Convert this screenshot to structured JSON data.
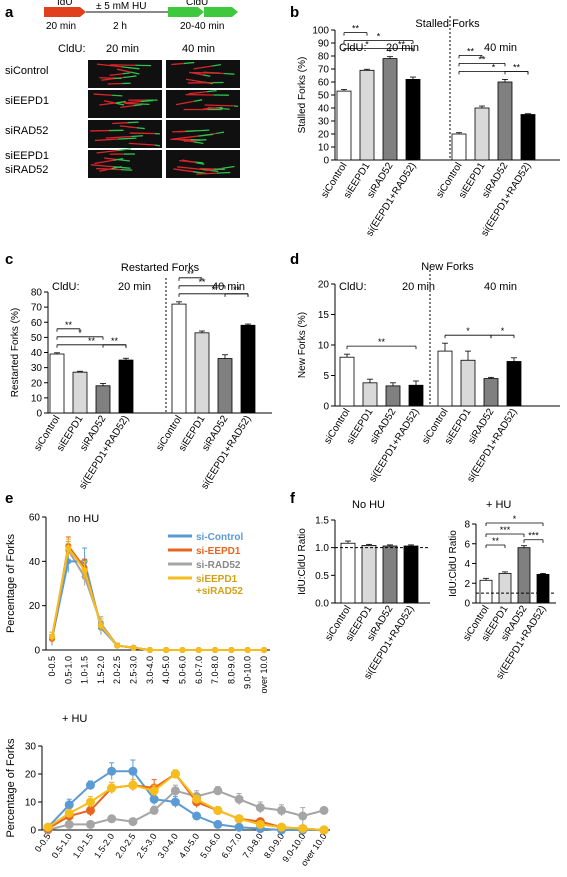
{
  "panel_letters": [
    "a",
    "b",
    "c",
    "d",
    "e",
    "f"
  ],
  "labels": {
    "a": {
      "idu": "IdU",
      "idu_time": "20 min",
      "hu": "± 5 mM HU",
      "hu_time": "2 h",
      "cldu": "CldU",
      "cldu_time": "20-40 min",
      "cldu_hdr": "CldU:",
      "t20": "20 min",
      "t40": "40 min",
      "rows": [
        "siControl",
        "siEEPD1",
        "siRAD52",
        "siEEPD1",
        "siRAD52"
      ]
    },
    "cldu_prefix": "CldU:",
    "t20": "20 min",
    "t40": "40 min"
  },
  "colors": {
    "idu": "#e0401c",
    "cldu": "#3ec83e",
    "micro_bg": "#101010",
    "fiber_red": "#d8262a",
    "fiber_green": "#30c050",
    "bar_fills": [
      "#ffffff",
      "#d9d9d9",
      "#808080",
      "#000000"
    ],
    "si_control": "#5b9bd5",
    "si_eepd1": "#e8641f",
    "si_rad52": "#a5a5a5",
    "si_both": "#f5be1c"
  },
  "chart_data": [
    {
      "id": "b",
      "type": "bar",
      "title": "Stalled Forks",
      "ylabel": "Stalled Forks (%)",
      "ylim": [
        0,
        100
      ],
      "yticks": [
        0,
        10,
        20,
        30,
        40,
        50,
        60,
        70,
        80,
        90,
        100
      ],
      "categories": [
        "siControl",
        "siEEPD1",
        "siRAD52",
        "si(EEPD1+RAD52)"
      ],
      "groups": [
        {
          "label": "20 min",
          "values": [
            53,
            69,
            78,
            62
          ],
          "errors": [
            1.2,
            0.8,
            1.5,
            1.8
          ]
        },
        {
          "label": "40 min",
          "values": [
            20,
            40,
            60,
            35
          ],
          "errors": [
            1.0,
            1.5,
            2.0,
            0.6
          ]
        }
      ],
      "sig": [
        {
          "g": 0,
          "a": 0,
          "b": 2,
          "t": "*"
        },
        {
          "g": 0,
          "a": 0,
          "b": 3,
          "t": "*"
        },
        {
          "g": 0,
          "a": 0,
          "b": 1,
          "t": "**"
        },
        {
          "g": 0,
          "a": 2,
          "b": 3,
          "t": "**"
        },
        {
          "g": 1,
          "a": 0,
          "b": 3,
          "t": "*"
        },
        {
          "g": 1,
          "a": 0,
          "b": 2,
          "t": "**"
        },
        {
          "g": 1,
          "a": 0,
          "b": 1,
          "t": "**"
        },
        {
          "g": 1,
          "a": 2,
          "b": 3,
          "t": "**"
        }
      ]
    },
    {
      "id": "c",
      "type": "bar",
      "title": "Restarted Forks",
      "ylabel": "Restarted Forks (%)",
      "ylim": [
        0,
        80
      ],
      "yticks": [
        0,
        10,
        20,
        30,
        40,
        50,
        60,
        70,
        80
      ],
      "categories": [
        "siControl",
        "siEEPD1",
        "siRAD52",
        "si(EEPD1+RAD52)"
      ],
      "groups": [
        {
          "label": "20 min",
          "values": [
            39,
            27,
            18,
            35
          ],
          "errors": [
            0.8,
            0.6,
            1.5,
            1.2
          ]
        },
        {
          "label": "40 min",
          "values": [
            72,
            53,
            36,
            58
          ],
          "errors": [
            1.5,
            1.2,
            2.5,
            0.8
          ]
        }
      ],
      "sig": [
        {
          "g": 0,
          "a": 0,
          "b": 3,
          "t": "**"
        },
        {
          "g": 0,
          "a": 0,
          "b": 2,
          "t": "*"
        },
        {
          "g": 0,
          "a": 0,
          "b": 1,
          "t": "**"
        },
        {
          "g": 0,
          "a": 2,
          "b": 3,
          "t": "**"
        },
        {
          "g": 1,
          "a": 0,
          "b": 3,
          "t": "*"
        },
        {
          "g": 1,
          "a": 0,
          "b": 2,
          "t": "**"
        },
        {
          "g": 1,
          "a": 0,
          "b": 1,
          "t": "**"
        },
        {
          "g": 1,
          "a": 2,
          "b": 3,
          "t": "**"
        }
      ]
    },
    {
      "id": "d",
      "type": "bar",
      "title": "New Forks",
      "ylabel": "New Forks (%)",
      "ylim": [
        0,
        20
      ],
      "yticks": [
        0,
        5,
        10,
        15,
        20
      ],
      "categories": [
        "siControl",
        "siEEPD1",
        "siRAD52",
        "si(EEPD1+RAD52)"
      ],
      "groups": [
        {
          "label": "20 min",
          "values": [
            8.0,
            3.8,
            3.3,
            3.4
          ],
          "errors": [
            0.5,
            0.6,
            0.5,
            0.7
          ]
        },
        {
          "label": "40 min",
          "values": [
            9.0,
            7.5,
            4.5,
            7.3
          ],
          "errors": [
            1.3,
            1.5,
            0.2,
            0.6
          ]
        }
      ],
      "sig": [
        {
          "g": 0,
          "a": 0,
          "b": 3,
          "t": "**"
        },
        {
          "g": 1,
          "a": 0,
          "b": 2,
          "t": "*"
        },
        {
          "g": 1,
          "a": 2,
          "b": 3,
          "t": "*"
        }
      ]
    },
    {
      "id": "e1",
      "type": "line",
      "annotation": "no HU",
      "ylabel": "Percentage of Forks",
      "ylim": [
        0,
        60
      ],
      "yticks": [
        0,
        20,
        40,
        60
      ],
      "categories": [
        "0-0.5",
        "0.5-1.0",
        "1.0-1.5",
        "1.5-2.0",
        "2.0-2.5",
        "2.5-3.0",
        "3.0-4.0",
        "4.0-5.0",
        "5.0-6.0",
        "6.0-7.0",
        "7.0-8.0",
        "8.0-9.0",
        "9.0-10.0",
        "over 10.0"
      ],
      "series": [
        {
          "name": "si-Control",
          "values": [
            5,
            40,
            40,
            10,
            2,
            1,
            0,
            0,
            0,
            0,
            0,
            0,
            0,
            0
          ],
          "errors": [
            3,
            5,
            6,
            3,
            1,
            0.5,
            0,
            0,
            0,
            0,
            0,
            0,
            0,
            0
          ]
        },
        {
          "name": "si-EEPD1",
          "values": [
            5,
            47,
            37,
            11,
            2,
            1,
            0,
            0,
            0,
            0,
            0,
            0,
            0,
            0
          ],
          "errors": [
            2,
            4,
            4,
            3,
            1,
            0.5,
            0,
            0,
            0,
            0,
            0,
            0,
            0,
            0
          ]
        },
        {
          "name": "si-RAD52",
          "values": [
            6,
            45,
            33,
            12,
            2,
            1,
            0,
            0,
            0,
            0,
            0,
            0,
            0,
            0
          ],
          "errors": [
            2,
            4,
            4,
            3,
            1,
            0.5,
            0,
            0,
            0,
            0,
            0,
            0,
            0,
            0
          ]
        },
        {
          "name": "siEEPD1 +siRAD52",
          "values": [
            6,
            46,
            36,
            11,
            2,
            1,
            0,
            0,
            0,
            0,
            0,
            0,
            0,
            0
          ],
          "errors": [
            2,
            4,
            4,
            3,
            1,
            0.5,
            0,
            0,
            0,
            0,
            0,
            0,
            0,
            0
          ]
        }
      ]
    },
    {
      "id": "e2",
      "type": "line",
      "annotation": "+ HU",
      "ylabel": "Percentage of Forks",
      "ylim": [
        0,
        30
      ],
      "yticks": [
        0,
        10,
        20,
        30
      ],
      "categories": [
        "0-0.5",
        "0.5-1.0",
        "1.0-1.5",
        "1.5-2.0",
        "2.0-2.5",
        "2.5-3.0",
        "3.0-4.0",
        "4.0-5.0",
        "5.0-6.0",
        "6.0-7.0",
        "7.0-8.0",
        "8.0-9.0",
        "9.0-10.0",
        "over 10.0"
      ],
      "series": [
        {
          "name": "si-Control",
          "values": [
            1,
            9,
            16,
            21,
            21,
            11,
            10,
            5,
            2,
            1,
            0.5,
            0,
            0,
            0
          ],
          "errors": [
            0.5,
            2,
            1.5,
            3,
            4,
            2,
            2,
            1,
            0.5,
            0.3,
            0.2,
            0,
            0,
            0
          ]
        },
        {
          "name": "si-EEPD1",
          "values": [
            0.5,
            5,
            7,
            15,
            16,
            15,
            20,
            10,
            7,
            4,
            3,
            1,
            0.5,
            0
          ],
          "errors": [
            0.3,
            1,
            2,
            2,
            2,
            3,
            1,
            2,
            1,
            1,
            1,
            0.5,
            0.3,
            0
          ]
        },
        {
          "name": "si-RAD52",
          "values": [
            0,
            2,
            2,
            4,
            3,
            7,
            14,
            12,
            14,
            11,
            8,
            7,
            5,
            7
          ],
          "errors": [
            0,
            0.5,
            0.5,
            1,
            1,
            1.5,
            2,
            2,
            1.5,
            2,
            2,
            2,
            3,
            1
          ]
        },
        {
          "name": "siEEPD1 +siRAD52",
          "values": [
            1,
            6,
            10,
            15,
            16,
            14,
            20,
            11,
            7,
            4,
            2,
            1,
            0.5,
            0
          ],
          "errors": [
            0.5,
            1,
            2,
            2,
            2,
            2,
            1.5,
            1,
            1,
            1,
            1,
            0.5,
            0.3,
            0
          ]
        }
      ]
    },
    {
      "id": "f1",
      "type": "bar",
      "title": "No HU",
      "ylabel": "IdU:CldU Ratio",
      "ylim": [
        0,
        1.5
      ],
      "yticks": [
        0,
        0.5,
        1.0,
        1.5
      ],
      "reference_line": 1.0,
      "categories": [
        "siControl",
        "siEEPD1",
        "siRAD52",
        "si(EEPD1+RAD52)"
      ],
      "values": [
        1.08,
        1.04,
        1.03,
        1.03
      ],
      "errors": [
        0.04,
        0.02,
        0.02,
        0.02
      ]
    },
    {
      "id": "f2",
      "type": "bar",
      "title": "+ HU",
      "ylabel": "IdU:CldU Ratio",
      "ylim": [
        0,
        8
      ],
      "yticks": [
        0,
        2,
        4,
        6,
        8
      ],
      "reference_line": 1.0,
      "categories": [
        "siControl",
        "siEEPD1",
        "siRAD52",
        "si(EEPD1+RAD52)"
      ],
      "values": [
        2.3,
        3.0,
        5.6,
        2.9
      ],
      "errors": [
        0.2,
        0.15,
        0.2,
        0.1
      ],
      "sig": [
        {
          "a": 0,
          "b": 3,
          "t": "*"
        },
        {
          "a": 0,
          "b": 2,
          "t": "***"
        },
        {
          "a": 0,
          "b": 1,
          "t": "**"
        },
        {
          "a": 2,
          "b": 3,
          "t": "***"
        }
      ]
    }
  ]
}
